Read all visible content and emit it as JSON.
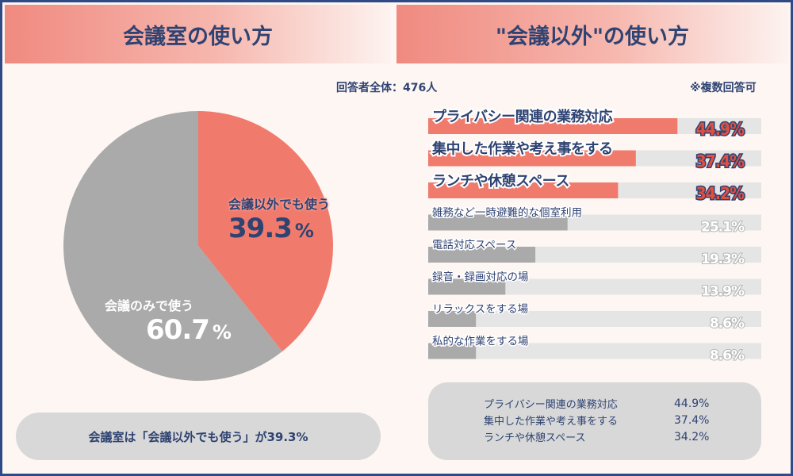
{
  "headers": {
    "left": "会議室の使い方",
    "right": "\"会議以外\"の使い方"
  },
  "total_respondents": "回答者全体：476人",
  "multi_answer_note": "※複数回答可",
  "pie": {
    "slices": [
      {
        "label": "会議以外でも使う",
        "value": 39.3,
        "value_text": "39.3",
        "color": "#f07a6c"
      },
      {
        "label": "会議のみで使う",
        "value": 60.7,
        "value_text": "60.7",
        "color": "#aaaaaa"
      }
    ],
    "percent_symbol": "%"
  },
  "left_summary": "会議室は「会議以外でも使う」が39.3%",
  "chart_data": [
    {
      "type": "pie",
      "categories": [
        "会議以外でも使う",
        "会議のみで使う"
      ],
      "values": [
        39.3,
        60.7
      ],
      "colors": [
        "#f07a6c",
        "#aaaaaa"
      ]
    },
    {
      "type": "bar",
      "orientation": "horizontal",
      "categories": [
        "プライバシー関連の業務対応",
        "集中した作業や考え事をする",
        "ランチや休憩スペース",
        "雑務など一時避難的な個室利用",
        "電話対応スペース",
        "録音・録画対応の場",
        "リラックスをする場",
        "私的な作業をする場"
      ],
      "values": [
        44.9,
        37.4,
        34.2,
        25.1,
        19.3,
        13.9,
        8.6,
        8.6
      ],
      "value_labels": [
        "44.9%",
        "37.4%",
        "34.2%",
        "25.1%",
        "19.3%",
        "13.9%",
        "8.6%",
        "8.6%"
      ],
      "highlight_count": 3,
      "colors": {
        "highlight": "#f07a6c",
        "normal": "#aaaaaa",
        "track": "#e5e5e5"
      },
      "xlim": [
        0,
        60
      ]
    }
  ],
  "right_summary": [
    {
      "name": "プライバシー関連の業務対応",
      "pct": "44.9%"
    },
    {
      "name": "集中した作業や考え事をする",
      "pct": "37.4%"
    },
    {
      "name": "ランチや休憩スペース",
      "pct": "34.2%"
    }
  ]
}
